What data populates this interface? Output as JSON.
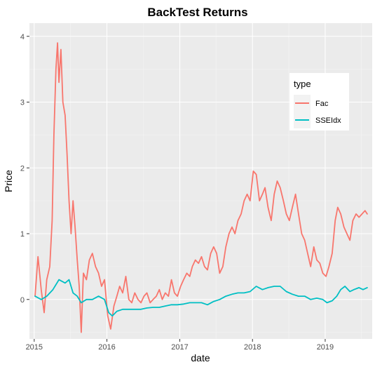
{
  "chart_data": {
    "type": "line",
    "title": "BackTest Returns",
    "xlabel": "date",
    "ylabel": "Price",
    "x_ticks": [
      "2015",
      "2016",
      "2017",
      "2018",
      "2019"
    ],
    "y_ticks": [
      "0",
      "1",
      "2",
      "3",
      "4"
    ],
    "xlim": [
      "2014-12-08",
      "2019-08-25"
    ],
    "ylim": [
      -0.6,
      4.2
    ],
    "grid": true,
    "legend": {
      "title": "type",
      "position": "right-inside"
    },
    "series": [
      {
        "name": "Fac",
        "color": "#F8766D",
        "x": [
          "2015-01-05",
          "2015-01-20",
          "2015-02-05",
          "2015-02-20",
          "2015-03-05",
          "2015-03-20",
          "2015-04-01",
          "2015-04-10",
          "2015-04-20",
          "2015-04-28",
          "2015-05-05",
          "2015-05-15",
          "2015-05-25",
          "2015-06-05",
          "2015-06-15",
          "2015-06-25",
          "2015-07-05",
          "2015-07-15",
          "2015-07-25",
          "2015-08-05",
          "2015-08-15",
          "2015-08-25",
          "2015-09-05",
          "2015-09-20",
          "2015-10-05",
          "2015-10-20",
          "2015-11-05",
          "2015-11-20",
          "2015-12-05",
          "2015-12-20",
          "2016-01-05",
          "2016-01-20",
          "2016-02-05",
          "2016-02-20",
          "2016-03-05",
          "2016-03-20",
          "2016-04-05",
          "2016-04-20",
          "2016-05-05",
          "2016-05-20",
          "2016-06-05",
          "2016-06-20",
          "2016-07-05",
          "2016-07-20",
          "2016-08-05",
          "2016-08-20",
          "2016-09-05",
          "2016-09-20",
          "2016-10-05",
          "2016-10-20",
          "2016-11-05",
          "2016-11-20",
          "2016-12-05",
          "2016-12-20",
          "2017-01-05",
          "2017-01-20",
          "2017-02-05",
          "2017-02-20",
          "2017-03-05",
          "2017-03-20",
          "2017-04-05",
          "2017-04-20",
          "2017-05-05",
          "2017-05-20",
          "2017-06-05",
          "2017-06-20",
          "2017-07-05",
          "2017-07-20",
          "2017-08-05",
          "2017-08-20",
          "2017-09-05",
          "2017-09-20",
          "2017-10-05",
          "2017-10-20",
          "2017-11-05",
          "2017-11-20",
          "2017-12-05",
          "2017-12-20",
          "2018-01-05",
          "2018-01-20",
          "2018-02-05",
          "2018-02-20",
          "2018-03-05",
          "2018-03-20",
          "2018-04-05",
          "2018-04-20",
          "2018-05-05",
          "2018-05-20",
          "2018-06-05",
          "2018-06-20",
          "2018-07-05",
          "2018-07-20",
          "2018-08-05",
          "2018-08-20",
          "2018-09-05",
          "2018-09-20",
          "2018-10-05",
          "2018-10-20",
          "2018-11-05",
          "2018-11-20",
          "2018-12-05",
          "2018-12-20",
          "2019-01-05",
          "2019-01-20",
          "2019-02-05",
          "2019-02-20",
          "2019-03-05",
          "2019-03-20",
          "2019-04-05",
          "2019-04-20",
          "2019-05-05",
          "2019-05-20",
          "2019-06-05",
          "2019-06-20",
          "2019-07-05",
          "2019-07-20",
          "2019-07-31"
        ],
        "values": [
          0.05,
          0.65,
          0.15,
          -0.2,
          0.3,
          0.5,
          1.2,
          2.5,
          3.5,
          3.9,
          3.3,
          3.8,
          3.0,
          2.8,
          2.2,
          1.5,
          1.0,
          1.5,
          1.1,
          0.6,
          0.2,
          -0.5,
          0.4,
          0.3,
          0.6,
          0.7,
          0.5,
          0.4,
          0.2,
          0.3,
          -0.25,
          -0.45,
          -0.1,
          0.05,
          0.2,
          0.1,
          0.35,
          0.0,
          -0.05,
          0.1,
          0.0,
          -0.05,
          0.05,
          0.1,
          -0.05,
          0.0,
          0.05,
          0.15,
          0.0,
          0.1,
          0.05,
          0.3,
          0.1,
          0.05,
          0.2,
          0.3,
          0.4,
          0.35,
          0.5,
          0.6,
          0.55,
          0.65,
          0.5,
          0.45,
          0.7,
          0.8,
          0.7,
          0.4,
          0.5,
          0.8,
          1.0,
          1.1,
          1.0,
          1.2,
          1.3,
          1.5,
          1.6,
          1.5,
          1.95,
          1.9,
          1.5,
          1.6,
          1.7,
          1.4,
          1.2,
          1.6,
          1.8,
          1.7,
          1.5,
          1.3,
          1.2,
          1.4,
          1.6,
          1.3,
          1.0,
          0.9,
          0.7,
          0.5,
          0.8,
          0.6,
          0.55,
          0.4,
          0.35,
          0.5,
          0.7,
          1.2,
          1.4,
          1.3,
          1.1,
          1.0,
          0.9,
          1.2,
          1.3,
          1.25,
          1.3,
          1.35,
          1.3
        ]
      },
      {
        "name": "SSEIdx",
        "color": "#00BFC4",
        "x": [
          "2015-01-05",
          "2015-02-05",
          "2015-03-05",
          "2015-04-05",
          "2015-05-05",
          "2015-06-05",
          "2015-06-25",
          "2015-07-15",
          "2015-08-05",
          "2015-08-25",
          "2015-09-20",
          "2015-10-20",
          "2015-11-20",
          "2015-12-20",
          "2016-01-10",
          "2016-01-28",
          "2016-02-20",
          "2016-03-20",
          "2016-04-20",
          "2016-05-20",
          "2016-06-20",
          "2016-07-20",
          "2016-08-20",
          "2016-09-20",
          "2016-10-20",
          "2016-11-20",
          "2016-12-20",
          "2017-01-20",
          "2017-02-20",
          "2017-03-20",
          "2017-04-20",
          "2017-05-20",
          "2017-06-20",
          "2017-07-20",
          "2017-08-20",
          "2017-09-20",
          "2017-10-20",
          "2017-11-20",
          "2017-12-20",
          "2018-01-20",
          "2018-02-20",
          "2018-03-20",
          "2018-04-20",
          "2018-05-20",
          "2018-06-20",
          "2018-07-20",
          "2018-08-20",
          "2018-09-20",
          "2018-10-20",
          "2018-11-20",
          "2018-12-20",
          "2019-01-10",
          "2019-02-05",
          "2019-02-28",
          "2019-03-20",
          "2019-04-10",
          "2019-05-05",
          "2019-05-25",
          "2019-06-20",
          "2019-07-10",
          "2019-07-31"
        ],
        "values": [
          0.05,
          0.0,
          0.05,
          0.15,
          0.3,
          0.25,
          0.3,
          0.1,
          0.05,
          -0.05,
          0.0,
          0.0,
          0.05,
          0.0,
          -0.2,
          -0.25,
          -0.18,
          -0.15,
          -0.15,
          -0.15,
          -0.15,
          -0.13,
          -0.12,
          -0.12,
          -0.1,
          -0.08,
          -0.08,
          -0.07,
          -0.05,
          -0.05,
          -0.05,
          -0.08,
          -0.03,
          0.0,
          0.05,
          0.08,
          0.1,
          0.1,
          0.12,
          0.2,
          0.15,
          0.18,
          0.2,
          0.2,
          0.12,
          0.08,
          0.05,
          0.05,
          0.0,
          0.02,
          0.0,
          -0.05,
          -0.02,
          0.05,
          0.15,
          0.2,
          0.12,
          0.15,
          0.18,
          0.15,
          0.18
        ]
      }
    ]
  }
}
